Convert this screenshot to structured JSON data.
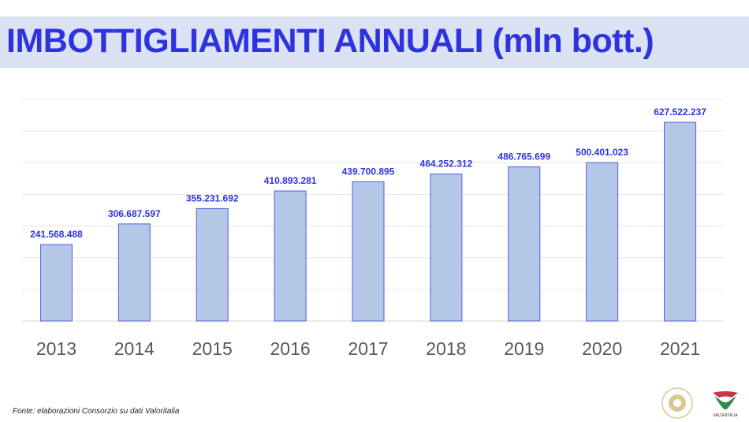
{
  "title": "IMBOTTIGLIAMENTI ANNUALI (mln bott.)",
  "source": "Fonte: elaborazioni Consorzio su dati Valoritalia",
  "logos": {
    "consorzio": "Consorzio Tutela Prosecco DOC",
    "valoritalia": "VALORITALIA"
  },
  "colors": {
    "bar_fill": "#b4c7e7",
    "bar_stroke": "#4f5fe0",
    "label": "#2e33e0",
    "title": "#2e33e0",
    "banner": "#dbe2f4"
  },
  "chart_data": {
    "type": "bar",
    "categories": [
      "2013",
      "2014",
      "2015",
      "2016",
      "2017",
      "2018",
      "2019",
      "2020",
      "2021"
    ],
    "values": [
      241568488,
      306687597,
      355231692,
      410893281,
      439700895,
      464252312,
      486765699,
      500401023,
      627522237
    ],
    "data_labels": [
      "241.568.488",
      "306.687.597",
      "355.231.692",
      "410.893.281",
      "439.700.895",
      "464.252.312",
      "486.765.699",
      "500.401.023",
      "627.522.237"
    ],
    "ylim": [
      0,
      700000000
    ],
    "grid": true,
    "y_tick_step": 100000000,
    "y_tick_labels_shown": false
  }
}
